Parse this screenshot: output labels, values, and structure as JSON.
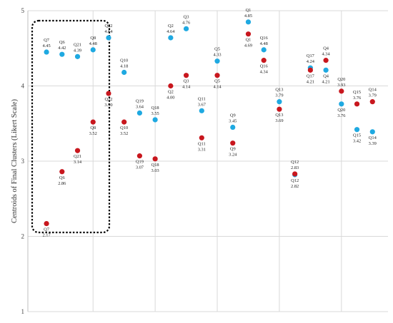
{
  "chart_data": {
    "type": "scatter",
    "ylabel": "Centroids of Final Clusters (Likert Scale)",
    "ylim": [
      1,
      5
    ],
    "yticks": [
      1,
      2,
      3,
      4,
      5
    ],
    "grid": true,
    "colors": {
      "cluster_a": "#1fa9e1",
      "cluster_b": "#c8171e"
    },
    "series": [
      {
        "key": "cluster_a",
        "points": [
          {
            "q": "Q7",
            "x": 1,
            "y": 4.45,
            "label": "4.45"
          },
          {
            "q": "Q6",
            "x": 1.5,
            "y": 4.42,
            "label": "4.42"
          },
          {
            "q": "Q21",
            "x": 2,
            "y": 4.39,
            "label": "4.39"
          },
          {
            "q": "Q8",
            "x": 2.5,
            "y": 4.48,
            "label": "4.48"
          },
          {
            "q": "Q22",
            "x": 3,
            "y": 4.64,
            "label": "4.64"
          },
          {
            "q": "Q10",
            "x": 3.5,
            "y": 4.18,
            "label": "4.18"
          },
          {
            "q": "Q19",
            "x": 4,
            "y": 3.64,
            "label": "3.64"
          },
          {
            "q": "Q18",
            "x": 4.5,
            "y": 3.55,
            "label": "3.55"
          },
          {
            "q": "Q2",
            "x": 5,
            "y": 4.64,
            "label": "4.64"
          },
          {
            "q": "Q3",
            "x": 5.5,
            "y": 4.76,
            "label": "4.76"
          },
          {
            "q": "Q11",
            "x": 6,
            "y": 3.67,
            "label": "3.67"
          },
          {
            "q": "Q5",
            "x": 6.5,
            "y": 4.33,
            "label": "4.33"
          },
          {
            "q": "Q9",
            "x": 7,
            "y": 3.45,
            "label": "3.45"
          },
          {
            "q": "Q1",
            "x": 7.5,
            "y": 4.85,
            "label": "4.85"
          },
          {
            "q": "Q16",
            "x": 8,
            "y": 4.48,
            "label": "4.48"
          },
          {
            "q": "Q13",
            "x": 8.5,
            "y": 3.79,
            "label": "3.79"
          },
          {
            "q": "Q12",
            "x": 9,
            "y": 2.82,
            "label": "2.82"
          },
          {
            "q": "Q17",
            "x": 9.5,
            "y": 4.24,
            "label": "4.24"
          },
          {
            "q": "Q4",
            "x": 10,
            "y": 4.21,
            "label": "4.21"
          },
          {
            "q": "Q20",
            "x": 10.5,
            "y": 3.76,
            "label": "3.76"
          },
          {
            "q": "Q15",
            "x": 11,
            "y": 3.42,
            "label": "3.42"
          },
          {
            "q": "Q14",
            "x": 11.5,
            "y": 3.39,
            "label": "3.39"
          }
        ]
      },
      {
        "key": "cluster_b",
        "points": [
          {
            "q": "Q7",
            "x": 1,
            "y": 2.17,
            "label": "2.17"
          },
          {
            "q": "Q6",
            "x": 1.5,
            "y": 2.86,
            "label": "2.86"
          },
          {
            "q": "Q21",
            "x": 2,
            "y": 3.14,
            "label": "3.14"
          },
          {
            "q": "Q8",
            "x": 2.5,
            "y": 3.52,
            "label": "3.52"
          },
          {
            "q": "Q22",
            "x": 3,
            "y": 3.9,
            "label": "3.90"
          },
          {
            "q": "Q10",
            "x": 3.5,
            "y": 3.52,
            "label": "3.52"
          },
          {
            "q": "Q19",
            "x": 4,
            "y": 3.07,
            "label": "3.07"
          },
          {
            "q": "Q18",
            "x": 4.5,
            "y": 3.03,
            "label": "3.03"
          },
          {
            "q": "Q2",
            "x": 5,
            "y": 4.0,
            "label": "4.00"
          },
          {
            "q": "Q3",
            "x": 5.5,
            "y": 4.14,
            "label": "4.14"
          },
          {
            "q": "Q11",
            "x": 6,
            "y": 3.31,
            "label": "3.31"
          },
          {
            "q": "Q5",
            "x": 6.5,
            "y": 4.14,
            "label": "4.14"
          },
          {
            "q": "Q9",
            "x": 7,
            "y": 3.24,
            "label": "3.24"
          },
          {
            "q": "Q1",
            "x": 7.5,
            "y": 4.69,
            "label": "4.69"
          },
          {
            "q": "Q16",
            "x": 8,
            "y": 4.34,
            "label": "4.34"
          },
          {
            "q": "Q13",
            "x": 8.5,
            "y": 3.69,
            "label": "3.69"
          },
          {
            "q": "Q12",
            "x": 9,
            "y": 2.83,
            "label": "2.83"
          },
          {
            "q": "Q17",
            "x": 9.5,
            "y": 4.21,
            "label": "4.21"
          },
          {
            "q": "Q4",
            "x": 10,
            "y": 4.34,
            "label": "4.34"
          },
          {
            "q": "Q20",
            "x": 10.5,
            "y": 3.93,
            "label": "3.93"
          },
          {
            "q": "Q15",
            "x": 11,
            "y": 3.76,
            "label": "3.76"
          },
          {
            "q": "Q14",
            "x": 11.5,
            "y": 3.79,
            "label": "3.79"
          }
        ]
      }
    ]
  }
}
